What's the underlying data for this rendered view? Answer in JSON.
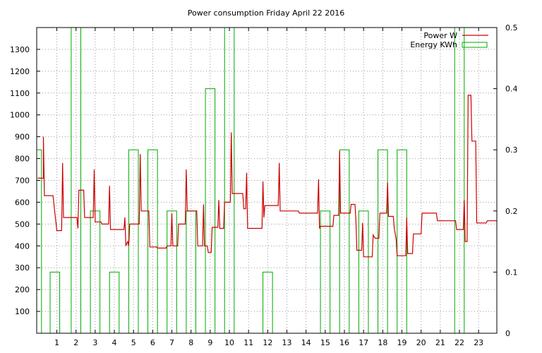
{
  "chart_data": {
    "type": "line",
    "title": "Power consumption Friday April 22 2016",
    "grid": true,
    "legend_placement": "top-right",
    "x": {
      "range": [
        -0.05,
        23.95
      ],
      "ticks": [
        1,
        2,
        3,
        4,
        5,
        6,
        7,
        8,
        9,
        10,
        11,
        12,
        13,
        14,
        15,
        16,
        17,
        18,
        19,
        20,
        21,
        22,
        23
      ],
      "tick_labels": [
        "1",
        "2",
        "3",
        "4",
        "5",
        "6",
        "7",
        "8",
        "9",
        "10",
        "11",
        "12",
        "13",
        "14",
        "15",
        "16",
        "17",
        "18",
        "19",
        "20",
        "21",
        "22",
        "23"
      ]
    },
    "y_left": {
      "range": [
        0,
        1400
      ],
      "ticks": [
        100,
        200,
        300,
        400,
        500,
        600,
        700,
        800,
        900,
        1000,
        1100,
        1200,
        1300
      ],
      "tick_labels": [
        "100",
        "200",
        "300",
        "400",
        "500",
        "600",
        "700",
        "800",
        "900",
        "1000",
        "1100",
        "1200",
        "1300"
      ]
    },
    "y_right": {
      "range": [
        0,
        0.5
      ],
      "ticks": [
        0,
        0.1,
        0.2,
        0.3,
        0.4,
        0.5
      ],
      "tick_labels": [
        "0",
        "0.1",
        "0.2",
        "0.3",
        "0.4",
        "0.5"
      ]
    },
    "series": [
      {
        "name": "Power W",
        "color": "#cc0000",
        "axis": "left",
        "style": "step",
        "points": [
          [
            0.0,
            710
          ],
          [
            0.3,
            710
          ],
          [
            0.3,
            900
          ],
          [
            0.35,
            630
          ],
          [
            0.8,
            630
          ],
          [
            0.9,
            550
          ],
          [
            1.0,
            470
          ],
          [
            1.25,
            470
          ],
          [
            1.3,
            780
          ],
          [
            1.35,
            530
          ],
          [
            2.05,
            530
          ],
          [
            2.1,
            480
          ],
          [
            2.15,
            655
          ],
          [
            2.4,
            655
          ],
          [
            2.45,
            530
          ],
          [
            2.9,
            530
          ],
          [
            2.95,
            750
          ],
          [
            3.0,
            510
          ],
          [
            3.3,
            510
          ],
          [
            3.35,
            500
          ],
          [
            3.7,
            500
          ],
          [
            3.75,
            675
          ],
          [
            3.8,
            475
          ],
          [
            4.5,
            475
          ],
          [
            4.55,
            530
          ],
          [
            4.6,
            400
          ],
          [
            4.7,
            420
          ],
          [
            4.75,
            400
          ],
          [
            4.8,
            500
          ],
          [
            5.3,
            500
          ],
          [
            5.35,
            820
          ],
          [
            5.4,
            560
          ],
          [
            5.8,
            560
          ],
          [
            5.85,
            395
          ],
          [
            6.2,
            395
          ],
          [
            6.25,
            390
          ],
          [
            6.7,
            390
          ],
          [
            6.75,
            400
          ],
          [
            6.95,
            400
          ],
          [
            7.0,
            550
          ],
          [
            7.05,
            400
          ],
          [
            7.3,
            400
          ],
          [
            7.35,
            500
          ],
          [
            7.7,
            500
          ],
          [
            7.75,
            750
          ],
          [
            7.8,
            560
          ],
          [
            8.3,
            560
          ],
          [
            8.35,
            400
          ],
          [
            8.6,
            400
          ],
          [
            8.65,
            590
          ],
          [
            8.7,
            400
          ],
          [
            8.85,
            400
          ],
          [
            8.9,
            370
          ],
          [
            9.05,
            370
          ],
          [
            9.1,
            485
          ],
          [
            9.4,
            485
          ],
          [
            9.45,
            610
          ],
          [
            9.5,
            480
          ],
          [
            9.7,
            480
          ],
          [
            9.75,
            600
          ],
          [
            10.05,
            600
          ],
          [
            10.1,
            920
          ],
          [
            10.15,
            640
          ],
          [
            10.7,
            640
          ],
          [
            10.75,
            570
          ],
          [
            10.85,
            570
          ],
          [
            10.9,
            735
          ],
          [
            10.95,
            480
          ],
          [
            11.7,
            480
          ],
          [
            11.75,
            695
          ],
          [
            11.8,
            530
          ],
          [
            11.85,
            585
          ],
          [
            12.55,
            585
          ],
          [
            12.6,
            780
          ],
          [
            12.65,
            560
          ],
          [
            13.6,
            560
          ],
          [
            13.65,
            550
          ],
          [
            14.6,
            550
          ],
          [
            14.65,
            705
          ],
          [
            14.7,
            480
          ],
          [
            14.75,
            490
          ],
          [
            15.4,
            490
          ],
          [
            15.45,
            540
          ],
          [
            15.7,
            540
          ],
          [
            15.75,
            835
          ],
          [
            15.8,
            550
          ],
          [
            16.3,
            550
          ],
          [
            16.35,
            590
          ],
          [
            16.55,
            590
          ],
          [
            16.6,
            520
          ],
          [
            16.65,
            380
          ],
          [
            16.9,
            380
          ],
          [
            16.95,
            505
          ],
          [
            17.0,
            350
          ],
          [
            17.45,
            350
          ],
          [
            17.5,
            450
          ],
          [
            17.6,
            435
          ],
          [
            17.8,
            435
          ],
          [
            17.85,
            550
          ],
          [
            18.2,
            550
          ],
          [
            18.25,
            690
          ],
          [
            18.3,
            535
          ],
          [
            18.55,
            535
          ],
          [
            18.6,
            480
          ],
          [
            18.7,
            430
          ],
          [
            18.75,
            355
          ],
          [
            19.2,
            355
          ],
          [
            19.25,
            530
          ],
          [
            19.3,
            365
          ],
          [
            19.55,
            365
          ],
          [
            19.6,
            455
          ],
          [
            20.0,
            455
          ],
          [
            20.05,
            550
          ],
          [
            20.8,
            550
          ],
          [
            20.85,
            515
          ],
          [
            21.8,
            515
          ],
          [
            21.85,
            475
          ],
          [
            22.2,
            475
          ],
          [
            22.25,
            610
          ],
          [
            22.3,
            420
          ],
          [
            22.4,
            420
          ],
          [
            22.45,
            1090
          ],
          [
            22.6,
            1090
          ],
          [
            22.65,
            880
          ],
          [
            22.85,
            880
          ],
          [
            22.9,
            505
          ],
          [
            23.4,
            505
          ],
          [
            23.45,
            515
          ],
          [
            23.95,
            515
          ]
        ]
      },
      {
        "name": "Energy KWh",
        "color": "#00aa00",
        "axis": "right",
        "style": "bars",
        "bars": [
          {
            "x0": -0.05,
            "x1": 0.2,
            "y": 0.3
          },
          {
            "x0": 0.65,
            "x1": 1.15,
            "y": 0.1
          },
          {
            "x0": 1.75,
            "x1": 2.25,
            "y": 0.5
          },
          {
            "x0": 2.75,
            "x1": 3.25,
            "y": 0.2
          },
          {
            "x0": 3.75,
            "x1": 4.25,
            "y": 0.1
          },
          {
            "x0": 4.75,
            "x1": 5.25,
            "y": 0.3
          },
          {
            "x0": 5.75,
            "x1": 6.25,
            "y": 0.3
          },
          {
            "x0": 6.75,
            "x1": 7.25,
            "y": 0.2
          },
          {
            "x0": 7.75,
            "x1": 8.25,
            "y": 0.2
          },
          {
            "x0": 8.75,
            "x1": 9.25,
            "y": 0.4
          },
          {
            "x0": 9.75,
            "x1": 10.25,
            "y": 0.5
          },
          {
            "x0": 11.75,
            "x1": 12.25,
            "y": 0.1
          },
          {
            "x0": 14.75,
            "x1": 15.25,
            "y": 0.2
          },
          {
            "x0": 15.75,
            "x1": 16.25,
            "y": 0.3
          },
          {
            "x0": 16.75,
            "x1": 17.25,
            "y": 0.2
          },
          {
            "x0": 17.75,
            "x1": 18.25,
            "y": 0.3
          },
          {
            "x0": 18.75,
            "x1": 19.25,
            "y": 0.3
          },
          {
            "x0": 21.75,
            "x1": 22.25,
            "y": 0.5
          }
        ]
      }
    ]
  }
}
